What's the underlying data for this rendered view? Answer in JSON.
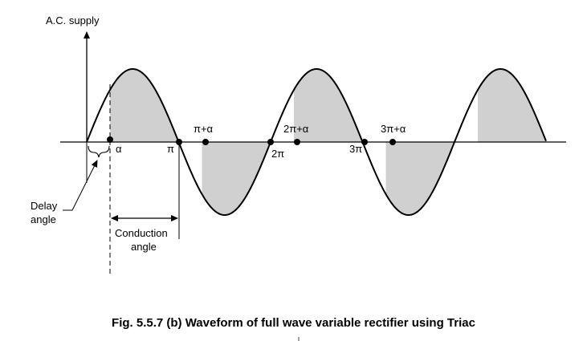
{
  "diagram": {
    "y_axis_label": "A.C. supply",
    "points": {
      "alpha": "α",
      "pi": "π",
      "pi_plus_alpha": "π+α",
      "two_pi": "2π",
      "two_pi_plus_alpha": "2π+α",
      "three_pi": "3π",
      "three_pi_plus_alpha": "3π+α"
    },
    "delay_angle_line1": "Delay",
    "delay_angle_line2": "angle",
    "conduction_angle_line1": "Conduction",
    "conduction_angle_line2": "angle"
  },
  "caption": "Fig. 5.5.7 (b) Waveform of full wave variable rectifier using Triac",
  "colors": {
    "wave": "#000000",
    "shade": "#d0d0d0",
    "background": "#ffffff"
  }
}
